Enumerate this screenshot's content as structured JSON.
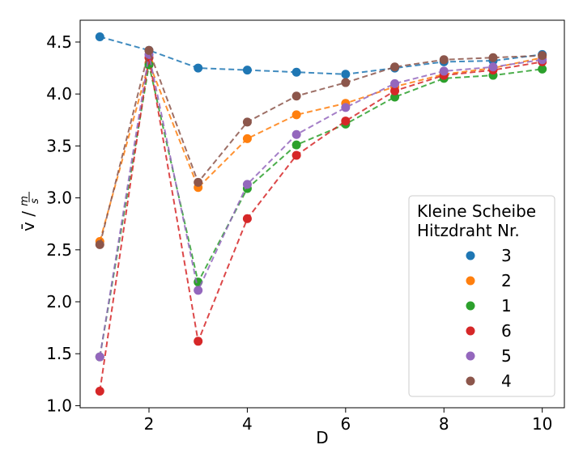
{
  "chart_data": {
    "type": "line",
    "xlabel": "D",
    "ylabel": "v̄ / m/s",
    "xlim": [
      0.6,
      10.45
    ],
    "ylim": [
      0.98,
      4.71
    ],
    "xticks": [
      2,
      4,
      6,
      8,
      10
    ],
    "yticks": [
      1.0,
      1.5,
      2.0,
      2.5,
      3.0,
      3.5,
      4.0,
      4.5
    ],
    "ytick_labels": [
      "1.0",
      "1.5",
      "2.0",
      "2.5",
      "3.0",
      "3.5",
      "4.0",
      "4.5"
    ],
    "grid": false,
    "line_style": "dashed",
    "legend": {
      "title": "Kleine Scheibe\nHitzdraht Nr.",
      "title_lines": [
        "Kleine Scheibe",
        "Hitzdraht Nr."
      ],
      "placement": "lower-right"
    },
    "x": [
      1,
      2,
      3,
      4,
      5,
      6,
      7,
      8,
      9,
      10
    ],
    "series": [
      {
        "name": "3",
        "color": "#1f77b4",
        "values": [
          4.55,
          4.42,
          4.25,
          4.23,
          4.21,
          4.19,
          4.25,
          4.31,
          4.32,
          4.38
        ]
      },
      {
        "name": "2",
        "color": "#ff7f0e",
        "values": [
          2.58,
          4.3,
          3.1,
          3.57,
          3.8,
          3.91,
          4.07,
          4.19,
          4.25,
          4.35
        ]
      },
      {
        "name": "1",
        "color": "#2ca02c",
        "values": [
          1.47,
          4.28,
          2.19,
          3.09,
          3.51,
          3.71,
          3.97,
          4.15,
          4.18,
          4.24
        ]
      },
      {
        "name": "6",
        "color": "#d62728",
        "values": [
          1.14,
          4.35,
          1.62,
          2.8,
          3.41,
          3.74,
          4.03,
          4.18,
          4.23,
          4.31
        ]
      },
      {
        "name": "5",
        "color": "#9467bd",
        "values": [
          1.47,
          4.38,
          2.11,
          3.13,
          3.61,
          3.87,
          4.1,
          4.22,
          4.26,
          4.33
        ]
      },
      {
        "name": "4",
        "color": "#8c564b",
        "values": [
          2.55,
          4.42,
          3.15,
          3.73,
          3.98,
          4.11,
          4.26,
          4.33,
          4.35,
          4.37
        ]
      }
    ]
  }
}
